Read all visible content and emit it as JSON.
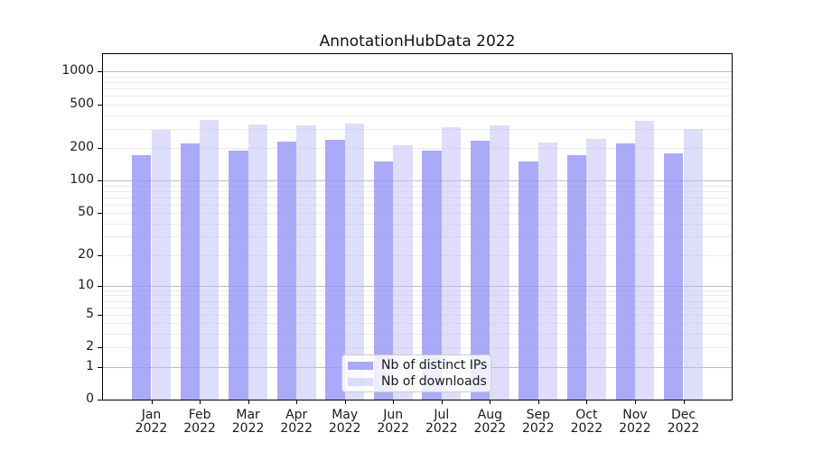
{
  "chart_data": {
    "type": "bar",
    "title": "AnnotationHubData 2022",
    "categories": [
      "Jan",
      "Feb",
      "Mar",
      "Apr",
      "May",
      "Jun",
      "Jul",
      "Aug",
      "Sep",
      "Oct",
      "Nov",
      "Dec"
    ],
    "year": "2022",
    "series": [
      {
        "name": "Nb of distinct IPs",
        "color": "rgba(149,149,246,0.8)",
        "values": [
          172,
          218,
          187,
          227,
          237,
          150,
          190,
          234,
          149,
          171,
          221,
          179
        ]
      },
      {
        "name": "Nb of downloads",
        "color": "rgba(189,189,245,0.5)",
        "values": [
          290,
          362,
          326,
          321,
          336,
          211,
          310,
          320,
          224,
          240,
          354,
          299
        ]
      }
    ],
    "y_ticks": [
      0,
      1,
      2,
      5,
      10,
      20,
      50,
      100,
      200,
      500,
      1000
    ],
    "y_tick_labels": [
      "0",
      "1",
      "2",
      "5",
      "10",
      "20",
      "50",
      "100",
      "200",
      "500",
      "1000"
    ],
    "y_scale": "log1p",
    "ylim": [
      0,
      1445
    ],
    "grid": true,
    "legend_position": "lower center"
  }
}
